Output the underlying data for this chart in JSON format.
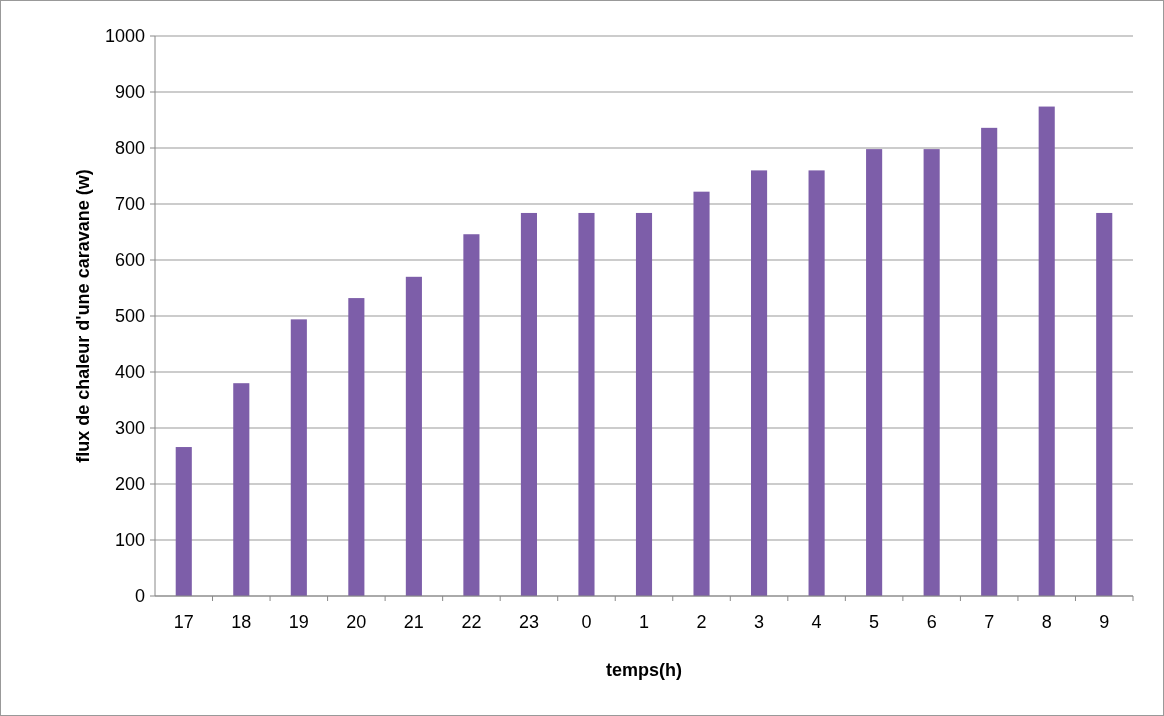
{
  "chart_data": {
    "type": "bar",
    "xlabel": "temps(h)",
    "ylabel": "flux de chaleur d'une caravane (w)",
    "categories": [
      "17",
      "18",
      "19",
      "20",
      "21",
      "22",
      "23",
      "0",
      "1",
      "2",
      "3",
      "4",
      "5",
      "6",
      "7",
      "8",
      "9"
    ],
    "values": [
      266,
      380,
      494,
      532,
      570,
      646,
      684,
      684,
      684,
      722,
      760,
      760,
      798,
      798,
      836,
      874,
      684
    ],
    "color": "#7d5ea9",
    "ylim": [
      0,
      1000
    ],
    "yticks": [
      0,
      100,
      200,
      300,
      400,
      500,
      600,
      700,
      800,
      900,
      1000
    ],
    "grid": "y"
  }
}
